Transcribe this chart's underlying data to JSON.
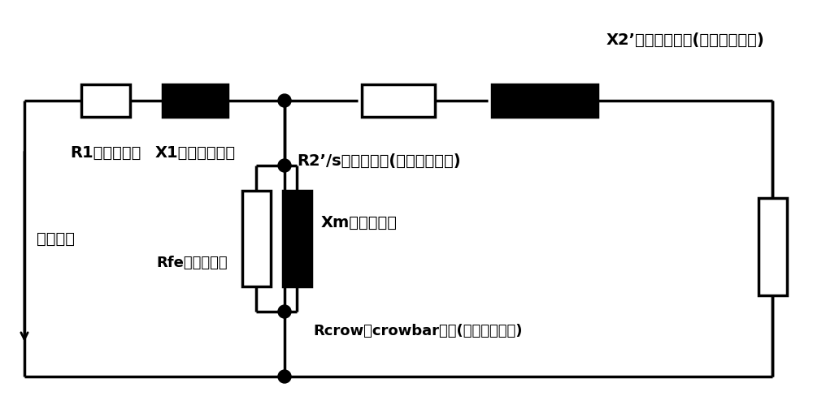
{
  "bg_color": "#ffffff",
  "line_color": "#000000",
  "line_width": 2.5,
  "labels": {
    "R1": "R1：定子阻抗",
    "X1": "X1：定子漏感抗",
    "R2s": "R2’/s：转子阻抗(折算到定子侧)",
    "X2": "X2’：转子漏感抗(折算到定子侧)",
    "Rfe": "Rfe：铁损电阻",
    "Xm": "Xm：磁化感抗",
    "Rcrow": "Rcrow：crowbar电阻(折算到定子侧)",
    "Vs": "定子电压"
  },
  "font_size": 14,
  "comp_lw": 2.5
}
